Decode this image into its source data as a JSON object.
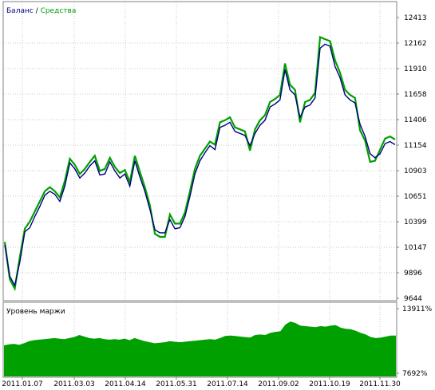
{
  "chart_data": [
    {
      "type": "line",
      "legend": {
        "balance_label": "Баланс",
        "separator": " / ",
        "equity_label": "Средства",
        "placement": "top-left"
      },
      "y_ticks": [
        "12413",
        "12162",
        "11910",
        "11658",
        "11406",
        "11154",
        "10903",
        "10651",
        "10399",
        "10147",
        "9896",
        "9644"
      ],
      "ylim": [
        9644,
        12413
      ],
      "colors": {
        "balance": "#000080",
        "equity": "#00a000",
        "grid": "#c8c8c8",
        "axis": "#808080",
        "frame": "#808080"
      },
      "grid": true,
      "series": [
        {
          "name": "Баланс",
          "values": [
            10170,
            9860,
            9770,
            10000,
            10300,
            10340,
            10450,
            10550,
            10660,
            10700,
            10670,
            10600,
            10750,
            10980,
            10920,
            10830,
            10880,
            10950,
            11000,
            10860,
            10870,
            10990,
            10900,
            10830,
            10870,
            10750,
            11000,
            10840,
            10700,
            10520,
            10320,
            10290,
            10290,
            10420,
            10330,
            10340,
            10450,
            10650,
            10870,
            11000,
            11080,
            11150,
            11110,
            11330,
            11350,
            11380,
            11290,
            11270,
            11250,
            11150,
            11270,
            11350,
            11400,
            11530,
            11560,
            11600,
            11900,
            11700,
            11650,
            11430,
            11530,
            11550,
            11620,
            12110,
            12150,
            12130,
            11930,
            11820,
            11650,
            11600,
            11570,
            11360,
            11240,
            11070,
            11030,
            11070,
            11170,
            11190,
            11160
          ]
        },
        {
          "name": "Средства",
          "values": [
            10200,
            9830,
            9740,
            10050,
            10330,
            10400,
            10500,
            10600,
            10700,
            10740,
            10700,
            10640,
            10800,
            11020,
            10960,
            10870,
            10920,
            10990,
            11050,
            10900,
            10920,
            11030,
            10940,
            10880,
            10910,
            10790,
            11050,
            10890,
            10740,
            10560,
            10280,
            10250,
            10250,
            10470,
            10380,
            10380,
            10490,
            10700,
            10920,
            11050,
            11120,
            11190,
            11160,
            11380,
            11400,
            11430,
            11330,
            11310,
            11290,
            11100,
            11310,
            11400,
            11450,
            11580,
            11610,
            11650,
            11960,
            11750,
            11700,
            11380,
            11580,
            11600,
            11670,
            12220,
            12200,
            12180,
            11990,
            11870,
            11700,
            11650,
            11620,
            11300,
            11200,
            10990,
            11000,
            11110,
            11220,
            11240,
            11210
          ]
        }
      ]
    },
    {
      "type": "area",
      "title": "Уровень маржи",
      "y_ticks": [
        "13911%",
        "7692%"
      ],
      "ylim": [
        7692,
        13911
      ],
      "colors": {
        "fill": "#00a000",
        "axis": "#808080"
      },
      "values": [
        10300,
        10400,
        10450,
        10350,
        10500,
        10700,
        10800,
        10850,
        10900,
        10950,
        11000,
        10950,
        10900,
        11000,
        11100,
        11300,
        11150,
        11000,
        10950,
        11000,
        10900,
        10850,
        10900,
        10850,
        10950,
        10800,
        11000,
        10850,
        10700,
        10600,
        10500,
        10550,
        10600,
        10700,
        10650,
        10600,
        10650,
        10700,
        10750,
        10800,
        10850,
        10900,
        10850,
        11000,
        11200,
        11250,
        11200,
        11150,
        11100,
        11050,
        11300,
        11350,
        11300,
        11500,
        11600,
        11650,
        12300,
        12600,
        12450,
        12200,
        12150,
        12100,
        12050,
        12150,
        12100,
        12200,
        12250,
        12000,
        11900,
        11850,
        11700,
        11500,
        11350,
        11100,
        11000,
        11050,
        11150,
        11250,
        11250
      ]
    }
  ],
  "x_ticks": [
    "2011.01.07",
    "2011.03.03",
    "2011.04.14",
    "2011.05.31",
    "2011.07.14",
    "2011.09.02",
    "2011.10.19",
    "2011.11.30"
  ]
}
